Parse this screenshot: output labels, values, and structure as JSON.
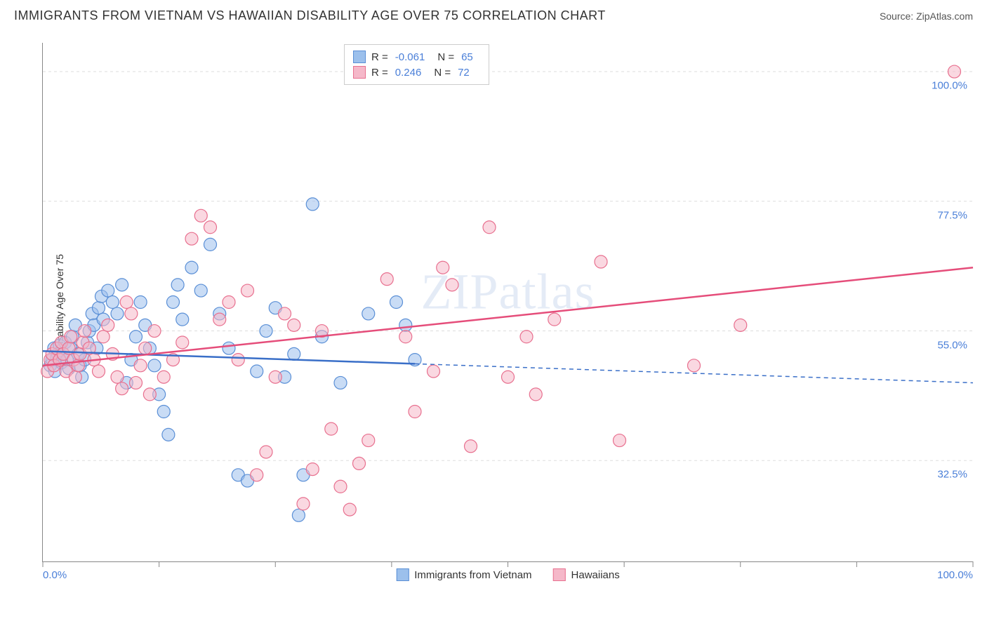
{
  "title": "IMMIGRANTS FROM VIETNAM VS HAWAIIAN DISABILITY AGE OVER 75 CORRELATION CHART",
  "source": "Source: ZipAtlas.com",
  "watermark": "ZIPatlas",
  "chart": {
    "type": "scatter",
    "ylabel": "Disability Age Over 75",
    "xlim": [
      0,
      100
    ],
    "ylim": [
      15,
      105
    ],
    "yticks": [
      32.5,
      55.0,
      77.5,
      100.0
    ],
    "ytick_labels": [
      "32.5%",
      "55.0%",
      "77.5%",
      "100.0%"
    ],
    "xticks": [
      0,
      12.5,
      25,
      37.5,
      50,
      62.5,
      75,
      87.5,
      100
    ],
    "xaxis_labels": {
      "left": "0.0%",
      "right": "100.0%"
    },
    "background_color": "#ffffff",
    "grid_color": "#dddddd",
    "axis_color": "#888888",
    "marker_radius": 9,
    "marker_opacity": 0.55,
    "line_width": 2.5,
    "series": [
      {
        "name": "Immigrants from Vietnam",
        "fill_color": "#9cc0ec",
        "stroke_color": "#5a8fd6",
        "line_color": "#3a6fc8",
        "R": "-0.061",
        "N": "65",
        "trend": {
          "y_at_x0": 51.5,
          "y_at_x100": 46.0,
          "solid_until_x": 40
        },
        "points": [
          [
            0.8,
            49
          ],
          [
            1.0,
            50
          ],
          [
            1.2,
            52
          ],
          [
            1.3,
            48
          ],
          [
            1.5,
            50.5
          ],
          [
            1.6,
            51
          ],
          [
            1.8,
            52.5
          ],
          [
            2.0,
            49.5
          ],
          [
            2.2,
            51
          ],
          [
            2.4,
            53
          ],
          [
            2.6,
            50
          ],
          [
            2.8,
            48.5
          ],
          [
            3.0,
            52
          ],
          [
            3.2,
            54
          ],
          [
            3.5,
            56
          ],
          [
            3.8,
            51
          ],
          [
            4.0,
            49
          ],
          [
            4.2,
            47
          ],
          [
            4.5,
            50
          ],
          [
            4.8,
            53
          ],
          [
            5.0,
            55
          ],
          [
            5.3,
            58
          ],
          [
            5.5,
            56
          ],
          [
            5.8,
            52
          ],
          [
            6.0,
            59
          ],
          [
            6.3,
            61
          ],
          [
            6.5,
            57
          ],
          [
            7.0,
            62
          ],
          [
            7.5,
            60
          ],
          [
            8.0,
            58
          ],
          [
            8.5,
            63
          ],
          [
            9.0,
            46
          ],
          [
            9.5,
            50
          ],
          [
            10.0,
            54
          ],
          [
            10.5,
            60
          ],
          [
            11.0,
            56
          ],
          [
            11.5,
            52
          ],
          [
            12.0,
            49
          ],
          [
            12.5,
            44
          ],
          [
            13.0,
            41
          ],
          [
            13.5,
            37
          ],
          [
            14.0,
            60
          ],
          [
            14.5,
            63
          ],
          [
            15.0,
            57
          ],
          [
            16.0,
            66
          ],
          [
            17.0,
            62
          ],
          [
            18.0,
            70
          ],
          [
            19.0,
            58
          ],
          [
            20.0,
            52
          ],
          [
            21.0,
            30
          ],
          [
            22.0,
            29
          ],
          [
            23.0,
            48
          ],
          [
            24.0,
            55
          ],
          [
            25.0,
            59
          ],
          [
            26.0,
            47
          ],
          [
            27.0,
            51
          ],
          [
            27.5,
            23
          ],
          [
            28.0,
            30
          ],
          [
            29.0,
            77
          ],
          [
            30.0,
            54
          ],
          [
            32.0,
            46
          ],
          [
            35.0,
            58
          ],
          [
            38.0,
            60
          ],
          [
            39.0,
            56
          ],
          [
            40.0,
            50
          ]
        ]
      },
      {
        "name": "Hawaiians",
        "fill_color": "#f5b8c9",
        "stroke_color": "#e8708f",
        "line_color": "#e54d7a",
        "R": "0.246",
        "N": "72",
        "trend": {
          "y_at_x0": 49.0,
          "y_at_x100": 66.0,
          "solid_until_x": 100
        },
        "points": [
          [
            0.5,
            48
          ],
          [
            0.8,
            50
          ],
          [
            1.0,
            51
          ],
          [
            1.2,
            49
          ],
          [
            1.5,
            52
          ],
          [
            1.8,
            50
          ],
          [
            2.0,
            53
          ],
          [
            2.2,
            51
          ],
          [
            2.5,
            48
          ],
          [
            2.8,
            52
          ],
          [
            3.0,
            54
          ],
          [
            3.3,
            50
          ],
          [
            3.5,
            47
          ],
          [
            3.8,
            49
          ],
          [
            4.0,
            51
          ],
          [
            4.3,
            53
          ],
          [
            4.5,
            55
          ],
          [
            5.0,
            52
          ],
          [
            5.5,
            50
          ],
          [
            6.0,
            48
          ],
          [
            6.5,
            54
          ],
          [
            7.0,
            56
          ],
          [
            7.5,
            51
          ],
          [
            8.0,
            47
          ],
          [
            8.5,
            45
          ],
          [
            9.0,
            60
          ],
          [
            9.5,
            58
          ],
          [
            10.0,
            46
          ],
          [
            10.5,
            49
          ],
          [
            11.0,
            52
          ],
          [
            11.5,
            44
          ],
          [
            12.0,
            55
          ],
          [
            13.0,
            47
          ],
          [
            14.0,
            50
          ],
          [
            15.0,
            53
          ],
          [
            16.0,
            71
          ],
          [
            17.0,
            75
          ],
          [
            18.0,
            73
          ],
          [
            19.0,
            57
          ],
          [
            20.0,
            60
          ],
          [
            21.0,
            50
          ],
          [
            22.0,
            62
          ],
          [
            23.0,
            30
          ],
          [
            24.0,
            34
          ],
          [
            25.0,
            47
          ],
          [
            26.0,
            58
          ],
          [
            27.0,
            56
          ],
          [
            28.0,
            25
          ],
          [
            29.0,
            31
          ],
          [
            30.0,
            55
          ],
          [
            31.0,
            38
          ],
          [
            32.0,
            28
          ],
          [
            33.0,
            24
          ],
          [
            34.0,
            32
          ],
          [
            35.0,
            36
          ],
          [
            37.0,
            64
          ],
          [
            39.0,
            54
          ],
          [
            40.0,
            41
          ],
          [
            42.0,
            48
          ],
          [
            43.0,
            66
          ],
          [
            44.0,
            63
          ],
          [
            46.0,
            35
          ],
          [
            48.0,
            73
          ],
          [
            50.0,
            47
          ],
          [
            52.0,
            54
          ],
          [
            53.0,
            44
          ],
          [
            55.0,
            57
          ],
          [
            60.0,
            67
          ],
          [
            62.0,
            36
          ],
          [
            70.0,
            49
          ],
          [
            75.0,
            56
          ],
          [
            98.0,
            100
          ]
        ]
      }
    ]
  },
  "legend_bottom": [
    {
      "label": "Immigrants from Vietnam",
      "fill": "#9cc0ec",
      "stroke": "#5a8fd6"
    },
    {
      "label": "Hawaiians",
      "fill": "#f5b8c9",
      "stroke": "#e8708f"
    }
  ]
}
